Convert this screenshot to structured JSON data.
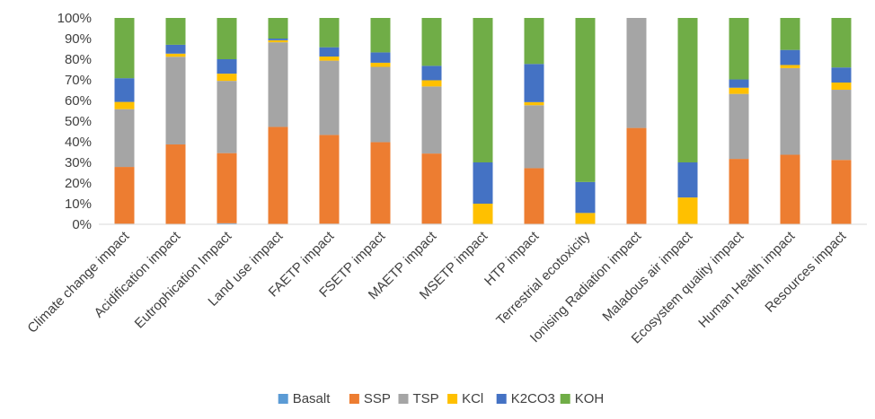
{
  "chart_data": {
    "type": "bar",
    "stacked": true,
    "percent_axis": true,
    "categories": [
      "Climate change impact",
      "Acidification impact",
      "Eutrophication Impact",
      "Land use impact",
      "FAETP impact",
      "FSETP impact",
      "MAETP impact",
      "MSETP impact",
      "HTP impact",
      "Terrestrial ecotoxicity",
      "Ionising Radiation impact",
      "Maladous air impact",
      "Ecosystem quality impact",
      "Human Health impact",
      "Resources impact"
    ],
    "series": [
      {
        "name": "Basalt",
        "color": "#5B9BD5",
        "values": [
          0.3,
          0.2,
          0.5,
          0.2,
          0.3,
          0.3,
          0.3,
          0,
          0.2,
          0,
          0.2,
          0,
          0.2,
          0.2,
          0.2
        ]
      },
      {
        "name": "SSP",
        "color": "#ED7D31",
        "values": [
          27.5,
          38.5,
          34,
          47,
          43,
          39.5,
          34,
          0,
          27,
          0,
          46.5,
          0,
          31.5,
          33.5,
          31
        ]
      },
      {
        "name": "TSP",
        "color": "#A5A5A5",
        "values": [
          28,
          42.5,
          35,
          41,
          36,
          36.5,
          32.5,
          0,
          30.5,
          0,
          53.3,
          0,
          31.5,
          42,
          34
        ]
      },
      {
        "name": "KCl",
        "color": "#FFC000",
        "values": [
          3.5,
          1.5,
          3.5,
          1,
          2,
          2,
          3,
          10,
          1.5,
          5.5,
          0,
          13,
          3,
          1.5,
          3.5
        ]
      },
      {
        "name": "K2CO3",
        "color": "#4472C4",
        "values": [
          11.5,
          4.3,
          7,
          0.8,
          4.5,
          5,
          7,
          20,
          18.5,
          15,
          0,
          17,
          4,
          7.3,
          7.3
        ]
      },
      {
        "name": "KOH",
        "color": "#70AD47",
        "values": [
          29.2,
          13,
          20,
          10,
          14.2,
          16.7,
          23.2,
          70,
          22.3,
          79.5,
          0,
          70,
          29.8,
          15.5,
          24
        ]
      }
    ],
    "ylim": [
      0,
      100
    ],
    "y_ticks": [
      "0%",
      "10%",
      "20%",
      "30%",
      "40%",
      "50%",
      "60%",
      "70%",
      "80%",
      "90%",
      "100%"
    ],
    "grid": false,
    "legend_position": "bottom"
  }
}
